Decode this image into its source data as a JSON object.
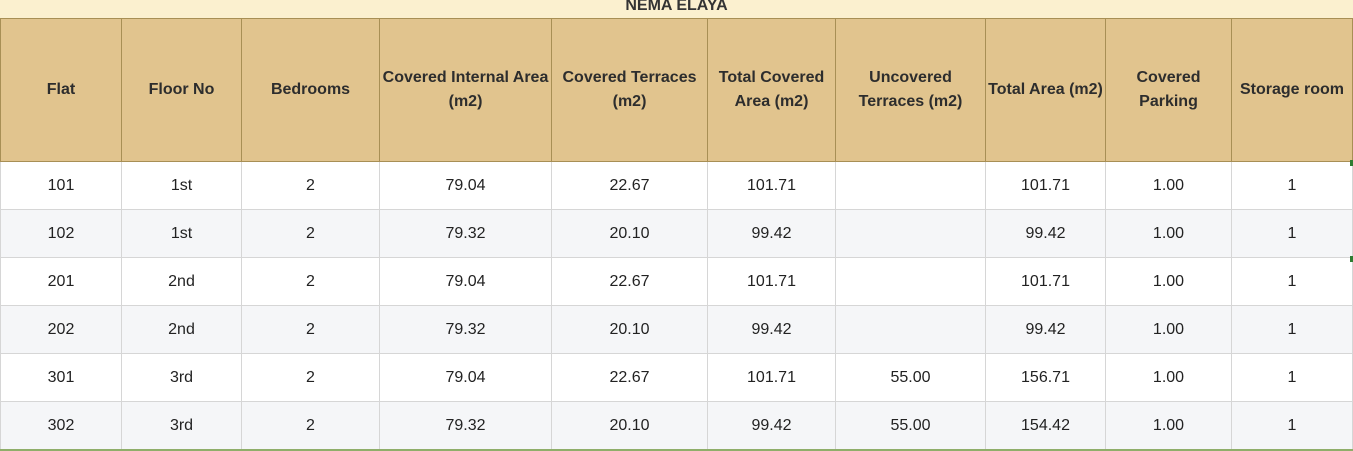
{
  "title": "NEMA ELAYA",
  "headers": [
    "Flat",
    "Floor No",
    "Bedrooms",
    "Covered Internal Area (m2)",
    "Covered Terraces (m2)",
    "Total Covered Area (m2)",
    "Uncovered Terraces (m2)",
    "Total Area (m2)",
    "Covered Parking",
    "Storage room"
  ],
  "rows": [
    [
      "101",
      "1st",
      "2",
      "79.04",
      "22.67",
      "101.71",
      "",
      "101.71",
      "1.00",
      "1"
    ],
    [
      "102",
      "1st",
      "2",
      "79.32",
      "20.10",
      "99.42",
      "",
      "99.42",
      "1.00",
      "1"
    ],
    [
      "201",
      "2nd",
      "2",
      "79.04",
      "22.67",
      "101.71",
      "",
      "101.71",
      "1.00",
      "1"
    ],
    [
      "202",
      "2nd",
      "2",
      "79.32",
      "20.10",
      "99.42",
      "",
      "99.42",
      "1.00",
      "1"
    ],
    [
      "301",
      "3rd",
      "2",
      "79.04",
      "22.67",
      "101.71",
      "55.00",
      "156.71",
      "1.00",
      "1"
    ],
    [
      "302",
      "3rd",
      "2",
      "79.32",
      "20.10",
      "99.42",
      "55.00",
      "154.42",
      "1.00",
      "1"
    ]
  ],
  "colors": {
    "header_bg": "#e1c48e",
    "title_bg": "#fbf0cf",
    "row_alt_bg": "#f5f6f8"
  }
}
